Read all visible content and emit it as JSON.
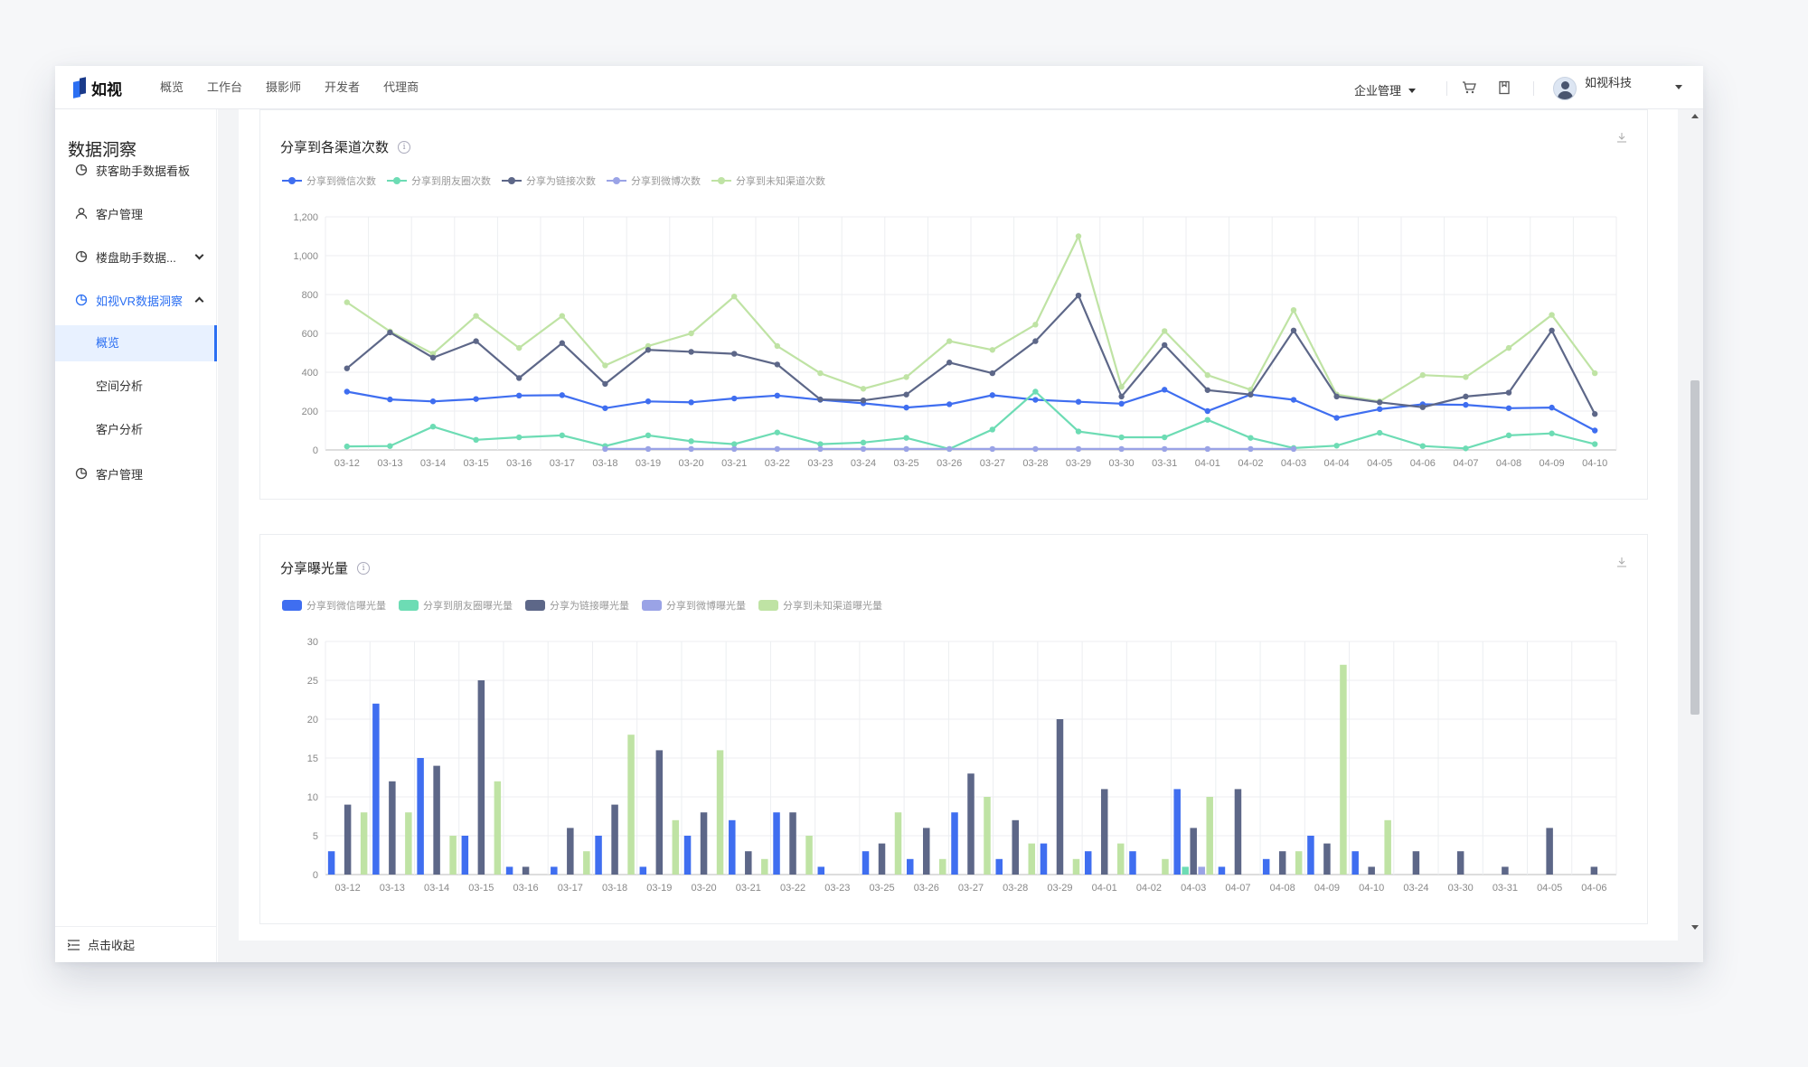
{
  "app": {
    "logo_text": "如视"
  },
  "nav": [
    "概览",
    "工作台",
    "摄影师",
    "开发者",
    "代理商"
  ],
  "topbar": {
    "enterprise_label": "企业管理",
    "user_name": "如视科技"
  },
  "sidebar": {
    "title": "数据洞察",
    "items": [
      {
        "label": "获客助手数据看板",
        "icon": "chart-icon"
      },
      {
        "label": "客户管理",
        "icon": "user-icon"
      },
      {
        "label": "楼盘助手数据...",
        "icon": "chart-icon"
      },
      {
        "label": "如视VR数据洞察",
        "icon": "chart-icon"
      },
      {
        "label": "客户管理",
        "icon": "chart-icon"
      }
    ],
    "subitems": [
      "概览",
      "空间分析",
      "客户分析"
    ],
    "collapse_label": "点击收起"
  },
  "colors": {
    "wechat": "#3f6ef0",
    "moments": "#6ddcb4",
    "link": "#5d6788",
    "weibo": "#9aa3e6",
    "unknown": "#bfe3a4"
  },
  "chart_data": [
    {
      "type": "line",
      "title": "分享到各渠道次数",
      "legend_position": "top-left",
      "ylim": [
        0,
        1200
      ],
      "yticks": [
        "0",
        "200",
        "400",
        "600",
        "800",
        "1,000",
        "1,200"
      ],
      "x": [
        "03-12",
        "03-13",
        "03-14",
        "03-15",
        "03-16",
        "03-17",
        "03-18",
        "03-19",
        "03-20",
        "03-21",
        "03-22",
        "03-23",
        "03-24",
        "03-25",
        "03-26",
        "03-27",
        "03-28",
        "03-29",
        "03-30",
        "03-31",
        "04-01",
        "04-02",
        "04-03",
        "04-04",
        "04-05",
        "04-06",
        "04-07",
        "04-08",
        "04-09",
        "04-10"
      ],
      "series": [
        {
          "name": "分享到微信次数",
          "color_key": "wechat",
          "values": [
            300,
            260,
            250,
            262,
            280,
            282,
            215,
            250,
            245,
            265,
            280,
            258,
            240,
            218,
            235,
            282,
            258,
            248,
            238,
            310,
            200,
            285,
            258,
            165,
            210,
            235,
            232,
            215,
            218,
            100
          ]
        },
        {
          "name": "分享到朋友圈次数",
          "color_key": "moments",
          "values": [
            18,
            20,
            120,
            52,
            65,
            75,
            20,
            75,
            45,
            30,
            90,
            30,
            38,
            62,
            5,
            105,
            300,
            95,
            65,
            65,
            155,
            62,
            10,
            22,
            88,
            20,
            8,
            75,
            85,
            30
          ]
        },
        {
          "name": "分享为链接次数",
          "color_key": "link",
          "values": [
            420,
            605,
            475,
            560,
            370,
            550,
            340,
            515,
            505,
            495,
            440,
            260,
            255,
            285,
            450,
            395,
            560,
            795,
            275,
            540,
            308,
            285,
            615,
            275,
            245,
            220,
            275,
            295,
            615,
            185
          ]
        },
        {
          "name": "分享到微博次数",
          "color_key": "weibo",
          "values": [
            null,
            null,
            null,
            null,
            null,
            null,
            5,
            5,
            5,
            5,
            5,
            5,
            5,
            5,
            5,
            5,
            5,
            5,
            5,
            5,
            5,
            5,
            5,
            null,
            null,
            null,
            null,
            null,
            null,
            null
          ]
        },
        {
          "name": "分享到未知渠道次数",
          "color_key": "unknown",
          "values": [
            760,
            610,
            495,
            690,
            525,
            690,
            435,
            535,
            600,
            790,
            535,
            395,
            315,
            375,
            560,
            515,
            645,
            1100,
            325,
            612,
            385,
            310,
            720,
            285,
            250,
            385,
            375,
            525,
            695,
            395
          ]
        }
      ]
    },
    {
      "type": "bar",
      "title": "分享曝光量",
      "legend_position": "top-left",
      "ylim": [
        0,
        30
      ],
      "yticks": [
        "0",
        "5",
        "10",
        "15",
        "20",
        "25",
        "30"
      ],
      "categories": [
        "03-12",
        "03-13",
        "03-14",
        "03-15",
        "03-16",
        "03-17",
        "03-18",
        "03-19",
        "03-20",
        "03-21",
        "03-22",
        "03-23",
        "03-25",
        "03-26",
        "03-27",
        "03-28",
        "03-29",
        "04-01",
        "04-02",
        "04-03",
        "04-07",
        "04-08",
        "04-09",
        "04-10",
        "03-24",
        "03-30",
        "03-31",
        "04-05",
        "04-06"
      ],
      "series": [
        {
          "name": "分享到微信曝光量",
          "color_key": "wechat",
          "values": [
            3,
            22,
            15,
            5,
            1,
            1,
            5,
            1,
            5,
            7,
            8,
            1,
            3,
            2,
            8,
            2,
            4,
            3,
            3,
            11,
            1,
            2,
            5,
            3,
            0,
            0,
            0,
            0,
            0
          ]
        },
        {
          "name": "分享到朋友圈曝光量",
          "color_key": "moments",
          "values": [
            0,
            0,
            0,
            0,
            0,
            0,
            0,
            0,
            0,
            0,
            0,
            0,
            0,
            0,
            0,
            0,
            0,
            0,
            0,
            1,
            0,
            0,
            0,
            0,
            0,
            0,
            0,
            0,
            0
          ]
        },
        {
          "name": "分享为链接曝光量",
          "color_key": "link",
          "values": [
            9,
            12,
            14,
            25,
            1,
            6,
            9,
            16,
            8,
            3,
            8,
            0,
            4,
            6,
            13,
            7,
            20,
            11,
            0,
            6,
            11,
            3,
            4,
            1,
            3,
            3,
            1,
            6,
            1
          ]
        },
        {
          "name": "分享到微博曝光量",
          "color_key": "weibo",
          "values": [
            0,
            0,
            0,
            0,
            0,
            0,
            0,
            0,
            0,
            0,
            0,
            0,
            0,
            0,
            0,
            0,
            0,
            0,
            0,
            1,
            0,
            0,
            0,
            0,
            0,
            0,
            0,
            0,
            0
          ]
        },
        {
          "name": "分享到未知渠道曝光量",
          "color_key": "unknown",
          "values": [
            8,
            8,
            5,
            12,
            0,
            3,
            18,
            7,
            16,
            2,
            5,
            0,
            8,
            2,
            10,
            4,
            2,
            4,
            2,
            10,
            0,
            3,
            27,
            7,
            0,
            0,
            0,
            0,
            0
          ]
        }
      ]
    }
  ]
}
